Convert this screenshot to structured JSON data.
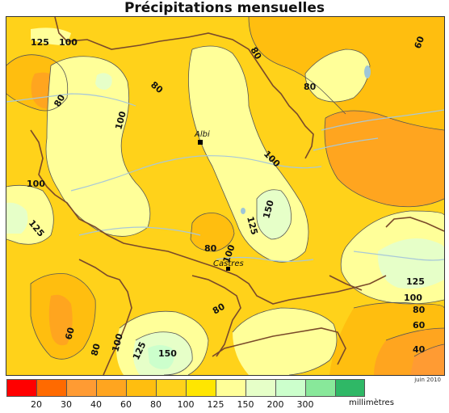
{
  "title": "Précipitations mensuelles",
  "date_stamp": "juin 2010",
  "unit": "millimètres",
  "legend": {
    "colors": [
      "#ff0000",
      "#ff6a00",
      "#ff9b33",
      "#ffa51f",
      "#ffbe0f",
      "#ffd21a",
      "#ffe600",
      "#ffff99",
      "#e6ffc8",
      "#ccffcc",
      "#88e89a",
      "#2fb866"
    ],
    "ticks": [
      "20",
      "30",
      "40",
      "60",
      "80",
      "100",
      "125",
      "150",
      "200",
      "300"
    ]
  },
  "cities": [
    {
      "name": "Albi"
    },
    {
      "name": "Castres"
    }
  ],
  "contour_labels": [
    "125",
    "100",
    "80",
    "80",
    "100",
    "60",
    "80",
    "100",
    "125",
    "150",
    "80",
    "100",
    "125",
    "100",
    "80",
    "60",
    "40",
    "60",
    "80",
    "100",
    "125",
    "150",
    "80",
    "80",
    "100",
    "125"
  ]
}
